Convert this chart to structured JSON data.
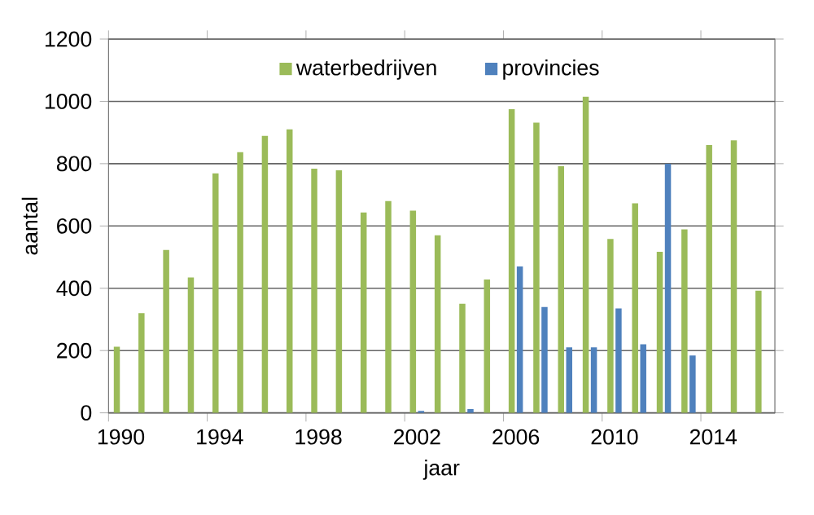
{
  "chart_data": {
    "type": "bar",
    "xlabel": "jaar",
    "ylabel": "aantal",
    "categories": [
      "1990",
      null,
      null,
      null,
      "1994",
      null,
      null,
      null,
      "1998",
      null,
      null,
      null,
      "2002",
      null,
      null,
      null,
      "2006",
      null,
      null,
      null,
      "2010",
      null,
      null,
      null,
      "2014",
      null,
      null
    ],
    "series": [
      {
        "name": "waterbedrijven",
        "color": "#9bbb59",
        "values": [
          212,
          320,
          523,
          435,
          769,
          837,
          889,
          910,
          784,
          779,
          643,
          680,
          649,
          570,
          350,
          428,
          975,
          932,
          792,
          1015,
          558,
          673,
          517,
          589,
          860,
          875,
          392
        ]
      },
      {
        "name": "provincies",
        "color": "#4f81bd",
        "values": [
          null,
          null,
          null,
          null,
          null,
          null,
          null,
          null,
          null,
          null,
          null,
          null,
          6,
          null,
          12,
          null,
          470,
          340,
          210,
          210,
          335,
          220,
          800,
          184,
          null,
          null,
          null
        ]
      }
    ],
    "ylim": [
      0,
      1200
    ],
    "yticks": [
      0,
      200,
      400,
      600,
      800,
      1000,
      1200
    ],
    "grid": "y",
    "legend": "top"
  }
}
